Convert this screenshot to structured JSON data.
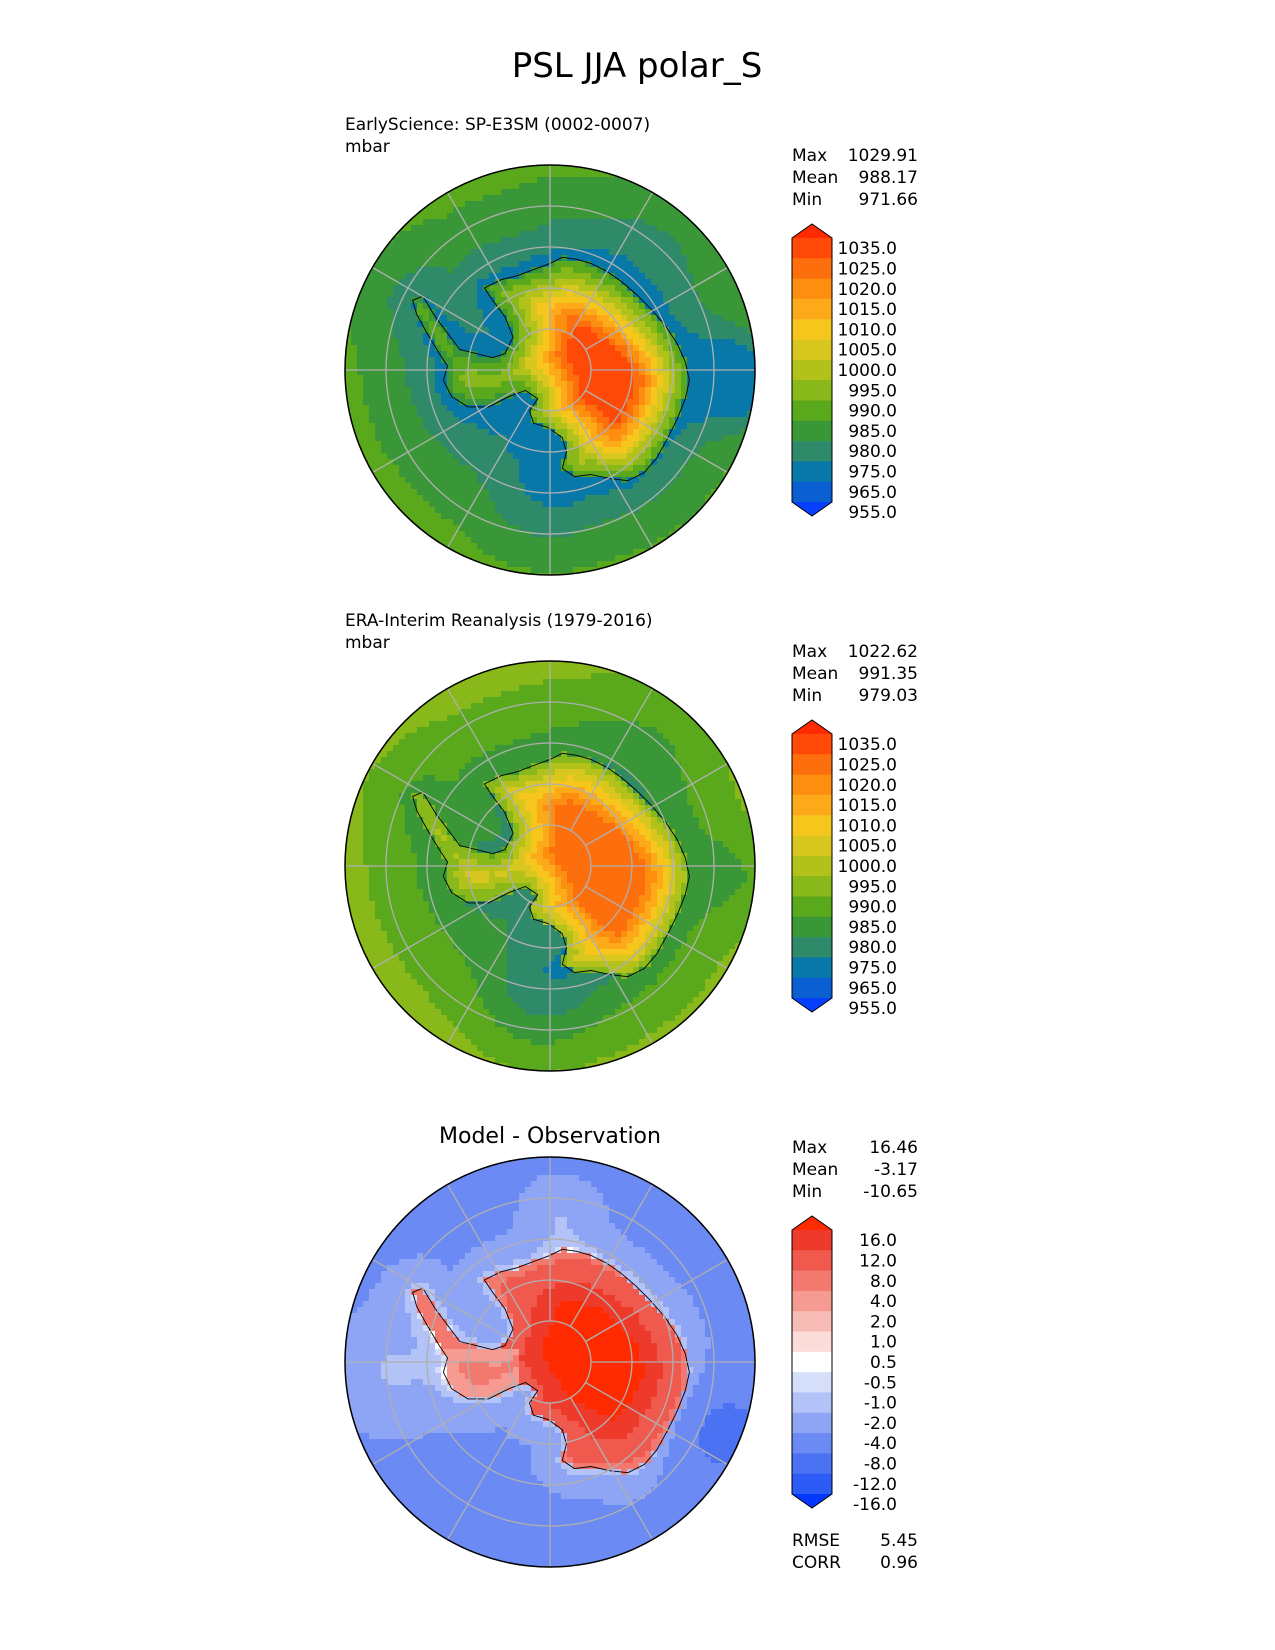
{
  "figure": {
    "title": "PSL JJA polar_S"
  },
  "colors": {
    "grid": "#b0b0b0",
    "coast": "#000000",
    "abs_levels": [
      "#0540ff",
      "#0a5fd2",
      "#0878a8",
      "#2f8a6a",
      "#3a9737",
      "#5aa81c",
      "#89b81a",
      "#b3c21b",
      "#d8c71e",
      "#f7c61c",
      "#fcaa1a",
      "#fd8f10",
      "#fd6e0c",
      "#ff4a07",
      "#ff2a00"
    ],
    "diff_levels": [
      "#0438ff",
      "#2d5bf6",
      "#4a72f3",
      "#6b8af4",
      "#8ea4f5",
      "#b3c2f7",
      "#d6dffa",
      "#ffffff",
      "#fbdcd8",
      "#f8bcb6",
      "#f69b92",
      "#f3796f",
      "#f05a4e",
      "#ee3a2a",
      "#ff2a00"
    ]
  },
  "chart_data": [
    {
      "type": "heatmap",
      "projection": "south polar stereographic",
      "variable": "PSL",
      "title": "EarlyScience: SP-E3SM (0002-0007)",
      "units": "mbar",
      "stats": [
        {
          "label": "Max",
          "value": "1029.91"
        },
        {
          "label": "Mean",
          "value": "988.17"
        },
        {
          "label": "Min",
          "value": "971.66"
        }
      ],
      "colorbar": {
        "tick_labels": [
          "1035.0",
          "1025.0",
          "1020.0",
          "1015.0",
          "1010.0",
          "1005.0",
          "1000.0",
          "995.0",
          "990.0",
          "985.0",
          "980.0",
          "975.0",
          "965.0",
          "955.0"
        ],
        "extend": "both"
      },
      "field": {
        "ocean_base": 985,
        "coast_ring": 975,
        "ross_sea": 980,
        "pac_low": 968,
        "antarctic_max": 1029.91
      }
    },
    {
      "type": "heatmap",
      "projection": "south polar stereographic",
      "variable": "PSL",
      "title": "ERA-Interim Reanalysis (1979-2016)",
      "units": "mbar",
      "stats": [
        {
          "label": "Max",
          "value": "1022.62"
        },
        {
          "label": "Mean",
          "value": "991.35"
        },
        {
          "label": "Min",
          "value": "979.03"
        }
      ],
      "colorbar": {
        "tick_labels": [
          "1035.0",
          "1025.0",
          "1020.0",
          "1015.0",
          "1010.0",
          "1005.0",
          "1000.0",
          "995.0",
          "990.0",
          "985.0",
          "980.0",
          "975.0",
          "965.0",
          "955.0"
        ],
        "extend": "both"
      },
      "field": {
        "ocean_base": 990,
        "coast_ring": 983,
        "ross_sea": 981,
        "pac_low": 985,
        "antarctic_max": 1022.62
      }
    },
    {
      "type": "heatmap",
      "projection": "south polar stereographic",
      "variable": "PSL difference",
      "title": "Model - Observation",
      "units": "",
      "stats": [
        {
          "label": "Max",
          "value": "16.46"
        },
        {
          "label": "Mean",
          "value": "-3.17"
        },
        {
          "label": "Min",
          "value": "-10.65"
        }
      ],
      "colorbar": {
        "tick_labels": [
          "16.0",
          "12.0",
          "8.0",
          "4.0",
          "2.0",
          "1.0",
          "0.5",
          "-0.5",
          "-1.0",
          "-2.0",
          "-4.0",
          "-8.0",
          "-12.0",
          "-16.0"
        ],
        "extend": "both"
      },
      "metrics": [
        {
          "label": "RMSE",
          "value": "5.45"
        },
        {
          "label": "CORR",
          "value": "0.96"
        }
      ],
      "field": {
        "ocean_base": -4.5,
        "land_base": 6.5,
        "max": 16.46,
        "min": -10.65
      }
    }
  ]
}
